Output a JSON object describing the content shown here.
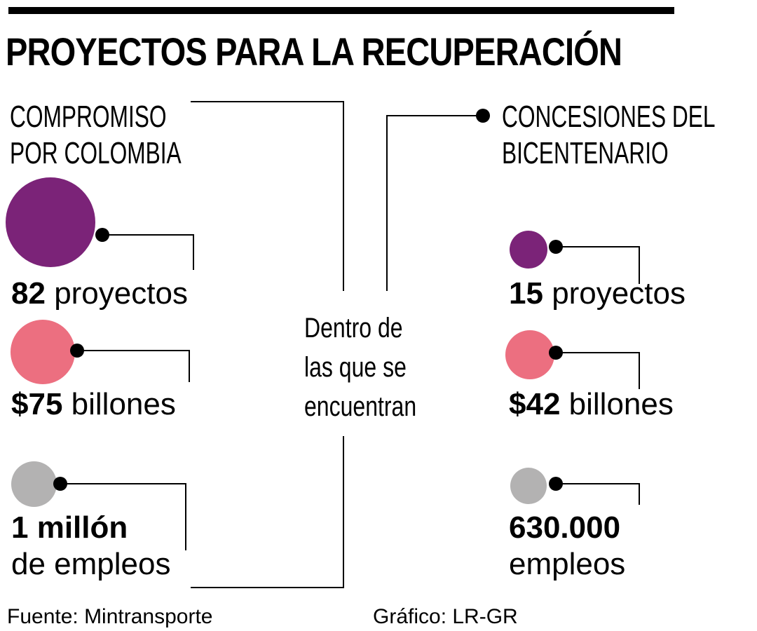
{
  "title": "PROYECTOS PARA LA RECUPERACIÓN",
  "left": {
    "heading_line1": "COMPROMISO",
    "heading_line2": "POR COLOMBIA",
    "projects": {
      "value": "82",
      "unit": "proyectos"
    },
    "money": {
      "value": "$75",
      "unit": "billones"
    },
    "jobs": {
      "value": "1 millón",
      "unit": "de empleos"
    }
  },
  "right": {
    "heading_line1": "CONCESIONES DEL",
    "heading_line2": "BICENTENARIO",
    "projects": {
      "value": "15",
      "unit": "proyectos"
    },
    "money": {
      "value": "$42",
      "unit": "billones"
    },
    "jobs": {
      "value": "630.000",
      "unit": "empleos"
    }
  },
  "center": {
    "line1": "Dentro de",
    "line2": "las que se",
    "line3": "encuentran"
  },
  "footer": {
    "source": "Fuente: Mintransporte",
    "credit": "Gráfico: LR-GR"
  },
  "colors": {
    "projects": "#7b2378",
    "money": "#ec6f80",
    "jobs": "#b3b2b2"
  }
}
